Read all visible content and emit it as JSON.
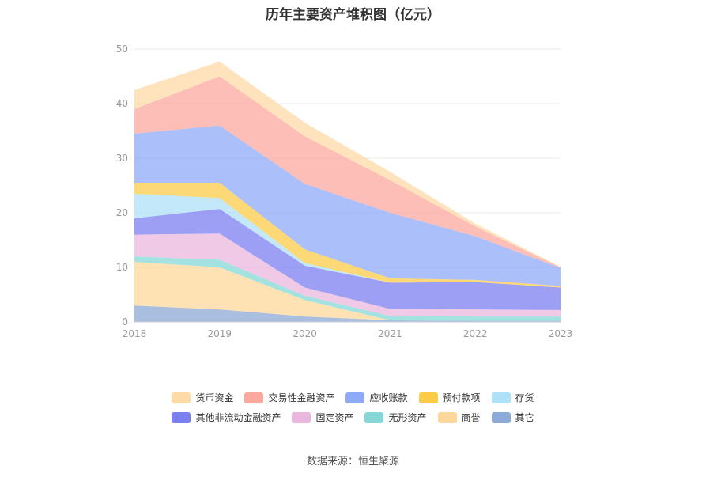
{
  "chart_data": {
    "type": "area",
    "title": "历年主要资产堆积图（亿元）",
    "x": [
      "2018",
      "2019",
      "2020",
      "2021",
      "2022",
      "2023"
    ],
    "ylim": [
      0,
      50
    ],
    "yticks": [
      0,
      10,
      20,
      30,
      40,
      50
    ],
    "stacked": true,
    "grid": true,
    "legend_position": "bottom",
    "series": [
      {
        "name": "其它",
        "color": "#8eaad6",
        "values": [
          3.0,
          2.3,
          1.0,
          0.3,
          0.2,
          0.2
        ]
      },
      {
        "name": "商誉",
        "color": "#fdd89a",
        "values": [
          8.0,
          7.7,
          3.0,
          0.0,
          0.0,
          0.0
        ]
      },
      {
        "name": "无形资产",
        "color": "#86d8d8",
        "values": [
          1.0,
          1.4,
          0.8,
          0.8,
          0.8,
          0.8
        ]
      },
      {
        "name": "固定资产",
        "color": "#e9b7dd",
        "values": [
          4.0,
          4.8,
          1.5,
          1.3,
          1.3,
          1.2
        ]
      },
      {
        "name": "其他非流动金融资产",
        "color": "#7b7ff0",
        "values": [
          3.0,
          4.5,
          4.0,
          4.8,
          5.0,
          4.1
        ]
      },
      {
        "name": "存货",
        "color": "#aee0f7",
        "values": [
          4.5,
          2.0,
          0.5,
          0.0,
          0.0,
          0.0
        ]
      },
      {
        "name": "预付款项",
        "color": "#fccb48",
        "values": [
          2.0,
          2.8,
          2.5,
          0.8,
          0.4,
          0.3
        ]
      },
      {
        "name": "应收账款",
        "color": "#8faaf8",
        "values": [
          9.0,
          10.5,
          12.0,
          12.0,
          8.0,
          3.3
        ]
      },
      {
        "name": "交易性金融资产",
        "color": "#fca89f",
        "values": [
          4.5,
          9.0,
          8.7,
          6.0,
          1.8,
          0.1
        ]
      },
      {
        "name": "货币资金",
        "color": "#fddaa6",
        "values": [
          3.5,
          2.7,
          2.5,
          1.5,
          0.5,
          0.1
        ]
      }
    ],
    "legend_rows": [
      [
        "货币资金",
        "交易性金融资产",
        "应收账款",
        "预付款项",
        "存货"
      ],
      [
        "其他非流动金融资产",
        "固定资产",
        "无形资产",
        "商誉",
        "其它"
      ]
    ]
  },
  "source_text": "数据来源：恒生聚源"
}
